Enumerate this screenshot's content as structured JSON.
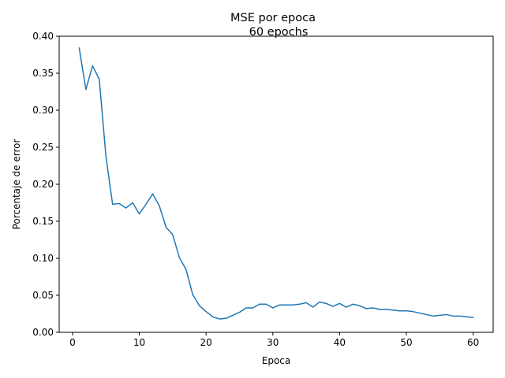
{
  "chart_data": {
    "type": "line",
    "title": "MSE por epoca",
    "subtitle": "60 epochs",
    "xlabel": "Epoca",
    "ylabel": "Porcentaje de error",
    "xlim": [
      -2,
      63
    ],
    "ylim": [
      0,
      0.4
    ],
    "xticks": [
      0,
      10,
      20,
      30,
      40,
      50,
      60
    ],
    "xtick_labels": [
      "0",
      "10",
      "20",
      "30",
      "40",
      "50",
      "60"
    ],
    "yticks": [
      0,
      0.05,
      0.1,
      0.15,
      0.2,
      0.25,
      0.3,
      0.35,
      0.4
    ],
    "ytick_labels": [
      "0.00",
      "0.05",
      "0.10",
      "0.15",
      "0.20",
      "0.25",
      "0.30",
      "0.35",
      "0.40"
    ],
    "grid": false,
    "line_color": "#1f77b4",
    "series": [
      {
        "x": [
          1,
          2,
          3,
          4,
          5,
          6,
          7,
          8,
          9,
          10,
          11,
          12,
          13,
          14,
          15,
          16,
          17,
          18,
          19,
          20,
          21,
          22,
          23,
          24,
          25,
          26,
          27,
          28,
          29,
          30,
          31,
          32,
          33,
          34,
          35,
          36,
          37,
          38,
          39,
          40,
          41,
          42,
          43,
          44,
          45,
          46,
          47,
          48,
          49,
          50,
          51,
          52,
          53,
          54,
          55,
          56,
          57,
          58,
          59,
          60
        ],
        "values": [
          0.384,
          0.328,
          0.36,
          0.342,
          0.238,
          0.173,
          0.174,
          0.168,
          0.175,
          0.16,
          0.173,
          0.187,
          0.171,
          0.142,
          0.132,
          0.101,
          0.085,
          0.051,
          0.036,
          0.028,
          0.021,
          0.018,
          0.019,
          0.023,
          0.027,
          0.033,
          0.033,
          0.038,
          0.038,
          0.033,
          0.037,
          0.037,
          0.037,
          0.038,
          0.04,
          0.034,
          0.041,
          0.039,
          0.035,
          0.039,
          0.034,
          0.038,
          0.036,
          0.032,
          0.033,
          0.031,
          0.031,
          0.03,
          0.029,
          0.029,
          0.028,
          0.026,
          0.024,
          0.022,
          0.023,
          0.024,
          0.022,
          0.022,
          0.021,
          0.02
        ]
      }
    ]
  }
}
